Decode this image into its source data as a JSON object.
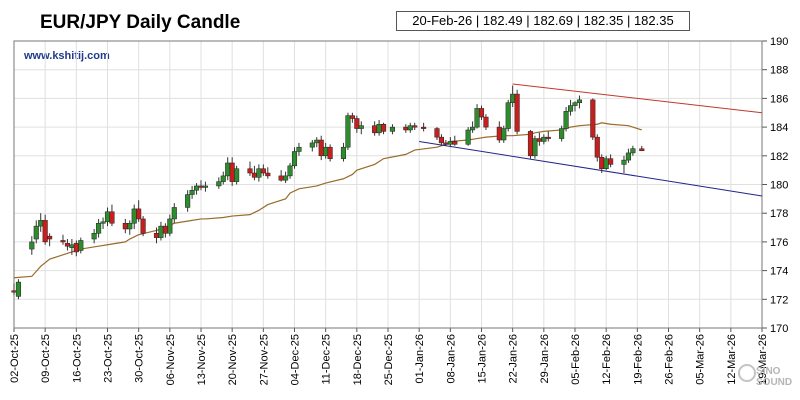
{
  "header": {
    "title": "EUR/JPY Daily Candle",
    "website": "www.kshitij.com",
    "ohlc_readout": "20-Feb-26 | 182.49 | 182.69 | 182.35 | 182.35"
  },
  "watermark": {
    "text": "SINO SOUND"
  },
  "colors": {
    "bull": "#2e8b2e",
    "bear": "#c81e1e",
    "wick": "#333333",
    "ma": "#9a6b2a",
    "upper_trendline": "#c0392b",
    "lower_trendline": "#23238c",
    "grid": "#e0e0e0"
  },
  "chart_data": {
    "type": "candlestick",
    "title": "EUR/JPY Daily Candle",
    "xlabel": "",
    "ylabel": "",
    "x_ticks": [
      "02-Oct-25",
      "09-Oct-25",
      "16-Oct-25",
      "23-Oct-25",
      "30-Oct-25",
      "06-Nov-25",
      "13-Nov-25",
      "20-Nov-25",
      "27-Nov-25",
      "04-Dec-25",
      "11-Dec-25",
      "18-Dec-25",
      "25-Dec-25",
      "01-Jan-26",
      "08-Jan-26",
      "15-Jan-26",
      "22-Jan-26",
      "29-Jan-26",
      "05-Feb-26",
      "12-Feb-26",
      "19-Feb-26",
      "26-Feb-26",
      "05-Mar-26",
      "12-Mar-26",
      "19-Mar-26"
    ],
    "y_ticks": [
      170,
      172,
      174,
      176,
      178,
      180,
      182,
      184,
      186,
      188,
      190
    ],
    "ylim": [
      170,
      190
    ],
    "y_axis_side": "right",
    "grid": true,
    "candles": [
      {
        "date": "02-Oct-25",
        "o": 172.6,
        "h": 173.1,
        "l": 172.3,
        "c": 172.5
      },
      {
        "date": "03-Oct-25",
        "o": 172.2,
        "h": 173.4,
        "l": 172.0,
        "c": 173.2
      },
      {
        "date": "06-Oct-25",
        "o": 175.5,
        "h": 176.4,
        "l": 175.1,
        "c": 176.0
      },
      {
        "date": "07-Oct-25",
        "o": 176.2,
        "h": 177.5,
        "l": 175.9,
        "c": 177.1
      },
      {
        "date": "08-Oct-25",
        "o": 177.1,
        "h": 178.0,
        "l": 176.7,
        "c": 177.5
      },
      {
        "date": "09-Oct-25",
        "o": 177.5,
        "h": 177.9,
        "l": 175.8,
        "c": 176.0
      },
      {
        "date": "10-Oct-25",
        "o": 176.4,
        "h": 176.6,
        "l": 175.7,
        "c": 176.2
      },
      {
        "date": "13-Oct-25",
        "o": 176.1,
        "h": 176.5,
        "l": 175.8,
        "c": 176.0
      },
      {
        "date": "14-Oct-25",
        "o": 175.9,
        "h": 176.2,
        "l": 175.4,
        "c": 175.7
      },
      {
        "date": "15-Oct-25",
        "o": 175.6,
        "h": 176.2,
        "l": 175.1,
        "c": 175.8
      },
      {
        "date": "16-Oct-25",
        "o": 175.9,
        "h": 176.1,
        "l": 175.0,
        "c": 175.3
      },
      {
        "date": "17-Oct-25",
        "o": 175.4,
        "h": 176.3,
        "l": 175.2,
        "c": 176.1
      },
      {
        "date": "20-Oct-25",
        "o": 176.2,
        "h": 176.9,
        "l": 175.9,
        "c": 176.6
      },
      {
        "date": "21-Oct-25",
        "o": 176.6,
        "h": 177.6,
        "l": 176.3,
        "c": 177.3
      },
      {
        "date": "22-Oct-25",
        "o": 177.3,
        "h": 177.7,
        "l": 176.9,
        "c": 177.4
      },
      {
        "date": "23-Oct-25",
        "o": 177.4,
        "h": 178.4,
        "l": 177.1,
        "c": 178.1
      },
      {
        "date": "24-Oct-25",
        "o": 178.1,
        "h": 178.6,
        "l": 177.1,
        "c": 177.3
      },
      {
        "date": "27-Oct-25",
        "o": 177.3,
        "h": 177.6,
        "l": 176.6,
        "c": 176.9
      },
      {
        "date": "28-Oct-25",
        "o": 176.9,
        "h": 177.5,
        "l": 176.5,
        "c": 177.3
      },
      {
        "date": "29-Oct-25",
        "o": 177.3,
        "h": 178.6,
        "l": 176.9,
        "c": 178.3
      },
      {
        "date": "30-Oct-25",
        "o": 178.3,
        "h": 178.9,
        "l": 177.4,
        "c": 177.6
      },
      {
        "date": "31-Oct-25",
        "o": 177.6,
        "h": 177.8,
        "l": 176.4,
        "c": 176.6
      },
      {
        "date": "03-Nov-25",
        "o": 176.6,
        "h": 177.0,
        "l": 175.9,
        "c": 176.3
      },
      {
        "date": "04-Nov-25",
        "o": 176.3,
        "h": 177.4,
        "l": 176.1,
        "c": 177.1
      },
      {
        "date": "05-Nov-25",
        "o": 177.1,
        "h": 177.3,
        "l": 176.3,
        "c": 176.6
      },
      {
        "date": "06-Nov-25",
        "o": 176.6,
        "h": 177.9,
        "l": 176.4,
        "c": 177.6
      },
      {
        "date": "07-Nov-25",
        "o": 177.6,
        "h": 178.7,
        "l": 177.3,
        "c": 178.4
      },
      {
        "date": "10-Nov-25",
        "o": 178.4,
        "h": 179.6,
        "l": 178.1,
        "c": 179.3
      },
      {
        "date": "11-Nov-25",
        "o": 179.3,
        "h": 179.9,
        "l": 179.0,
        "c": 179.6
      },
      {
        "date": "12-Nov-25",
        "o": 179.6,
        "h": 180.1,
        "l": 179.3,
        "c": 179.9
      },
      {
        "date": "13-Nov-25",
        "o": 179.9,
        "h": 180.3,
        "l": 179.6,
        "c": 179.8
      },
      {
        "date": "14-Nov-25",
        "o": 179.8,
        "h": 180.2,
        "l": 179.5,
        "c": 179.9
      },
      {
        "date": "17-Nov-25",
        "o": 179.9,
        "h": 180.5,
        "l": 179.7,
        "c": 180.2
      },
      {
        "date": "18-Nov-25",
        "o": 180.2,
        "h": 180.9,
        "l": 180.0,
        "c": 180.6
      },
      {
        "date": "19-Nov-25",
        "o": 180.6,
        "h": 181.9,
        "l": 180.3,
        "c": 181.5
      },
      {
        "date": "20-Nov-25",
        "o": 181.5,
        "h": 181.9,
        "l": 179.9,
        "c": 180.2
      },
      {
        "date": "21-Nov-25",
        "o": 180.2,
        "h": 181.3,
        "l": 180.0,
        "c": 181.1
      },
      {
        "date": "24-Nov-25",
        "o": 181.1,
        "h": 181.6,
        "l": 180.6,
        "c": 180.8
      },
      {
        "date": "25-Nov-25",
        "o": 180.8,
        "h": 181.3,
        "l": 180.3,
        "c": 180.5
      },
      {
        "date": "26-Nov-25",
        "o": 180.5,
        "h": 181.4,
        "l": 180.2,
        "c": 181.1
      },
      {
        "date": "27-Nov-25",
        "o": 181.1,
        "h": 181.4,
        "l": 180.6,
        "c": 180.8
      },
      {
        "date": "28-Nov-25",
        "o": 180.8,
        "h": 181.2,
        "l": 180.4,
        "c": 180.6
      },
      {
        "date": "01-Dec-25",
        "o": 180.6,
        "h": 181.0,
        "l": 180.2,
        "c": 180.3
      },
      {
        "date": "02-Dec-25",
        "o": 180.3,
        "h": 180.9,
        "l": 180.1,
        "c": 180.6
      },
      {
        "date": "03-Dec-25",
        "o": 180.6,
        "h": 181.5,
        "l": 180.4,
        "c": 181.3
      },
      {
        "date": "04-Dec-25",
        "o": 181.3,
        "h": 182.6,
        "l": 181.1,
        "c": 182.3
      },
      {
        "date": "05-Dec-25",
        "o": 182.3,
        "h": 182.9,
        "l": 182.0,
        "c": 182.6
      },
      {
        "date": "08-Dec-25",
        "o": 182.6,
        "h": 183.1,
        "l": 182.3,
        "c": 182.9
      },
      {
        "date": "09-Dec-25",
        "o": 182.9,
        "h": 183.3,
        "l": 182.6,
        "c": 183.1
      },
      {
        "date": "10-Dec-25",
        "o": 183.1,
        "h": 183.4,
        "l": 181.7,
        "c": 182.0
      },
      {
        "date": "11-Dec-25",
        "o": 182.0,
        "h": 182.9,
        "l": 181.8,
        "c": 182.6
      },
      {
        "date": "12-Dec-25",
        "o": 182.6,
        "h": 182.8,
        "l": 181.6,
        "c": 181.8
      },
      {
        "date": "15-Dec-25",
        "o": 181.8,
        "h": 182.9,
        "l": 181.6,
        "c": 182.6
      },
      {
        "date": "16-Dec-25",
        "o": 182.6,
        "h": 185.0,
        "l": 182.4,
        "c": 184.8
      },
      {
        "date": "17-Dec-25",
        "o": 184.8,
        "h": 185.0,
        "l": 184.3,
        "c": 184.6
      },
      {
        "date": "18-Dec-25",
        "o": 184.6,
        "h": 184.8,
        "l": 183.6,
        "c": 183.9
      },
      {
        "date": "19-Dec-25",
        "o": 183.9,
        "h": 184.4,
        "l": 183.5,
        "c": 184.1
      },
      {
        "date": "22-Dec-25",
        "o": 184.1,
        "h": 184.4,
        "l": 183.4,
        "c": 183.6
      },
      {
        "date": "23-Dec-25",
        "o": 183.6,
        "h": 184.5,
        "l": 183.4,
        "c": 184.2
      },
      {
        "date": "24-Dec-25",
        "o": 184.2,
        "h": 184.3,
        "l": 183.5,
        "c": 183.7
      },
      {
        "date": "26-Dec-25",
        "o": 183.7,
        "h": 184.2,
        "l": 183.5,
        "c": 184.0
      },
      {
        "date": "29-Dec-25",
        "o": 184.0,
        "h": 184.2,
        "l": 183.6,
        "c": 183.8
      },
      {
        "date": "30-Dec-25",
        "o": 183.8,
        "h": 184.3,
        "l": 183.6,
        "c": 184.1
      },
      {
        "date": "31-Dec-25",
        "o": 184.1,
        "h": 184.3,
        "l": 183.8,
        "c": 184.0
      },
      {
        "date": "02-Jan-26",
        "o": 184.0,
        "h": 184.3,
        "l": 183.7,
        "c": 183.9
      },
      {
        "date": "05-Jan-26",
        "o": 183.9,
        "h": 184.0,
        "l": 183.1,
        "c": 183.3
      },
      {
        "date": "06-Jan-26",
        "o": 183.3,
        "h": 183.5,
        "l": 182.7,
        "c": 182.9
      },
      {
        "date": "07-Jan-26",
        "o": 182.9,
        "h": 183.1,
        "l": 182.7,
        "c": 182.8
      },
      {
        "date": "08-Jan-26",
        "o": 182.8,
        "h": 183.3,
        "l": 182.6,
        "c": 183.0
      },
      {
        "date": "09-Jan-26",
        "o": 183.0,
        "h": 183.4,
        "l": 182.7,
        "c": 182.8
      },
      {
        "date": "12-Jan-26",
        "o": 182.8,
        "h": 184.0,
        "l": 182.7,
        "c": 183.8
      },
      {
        "date": "13-Jan-26",
        "o": 183.8,
        "h": 184.4,
        "l": 183.6,
        "c": 184.0
      },
      {
        "date": "14-Jan-26",
        "o": 184.0,
        "h": 185.6,
        "l": 183.9,
        "c": 185.3
      },
      {
        "date": "15-Jan-26",
        "o": 185.3,
        "h": 185.5,
        "l": 184.5,
        "c": 184.7
      },
      {
        "date": "16-Jan-26",
        "o": 184.7,
        "h": 184.9,
        "l": 183.8,
        "c": 184.0
      },
      {
        "date": "19-Jan-26",
        "o": 184.0,
        "h": 184.4,
        "l": 182.9,
        "c": 183.1
      },
      {
        "date": "20-Jan-26",
        "o": 183.1,
        "h": 184.1,
        "l": 182.9,
        "c": 183.9
      },
      {
        "date": "21-Jan-26",
        "o": 183.9,
        "h": 185.9,
        "l": 183.7,
        "c": 185.7
      },
      {
        "date": "22-Jan-26",
        "o": 185.7,
        "h": 186.9,
        "l": 185.4,
        "c": 186.3
      },
      {
        "date": "23-Jan-26",
        "o": 186.3,
        "h": 186.6,
        "l": 183.5,
        "c": 183.7
      },
      {
        "date": "26-Jan-26",
        "o": 183.7,
        "h": 183.8,
        "l": 181.8,
        "c": 182.0
      },
      {
        "date": "27-Jan-26",
        "o": 182.0,
        "h": 183.4,
        "l": 181.8,
        "c": 183.2
      },
      {
        "date": "28-Jan-26",
        "o": 183.2,
        "h": 183.6,
        "l": 182.7,
        "c": 183.0
      },
      {
        "date": "29-Jan-26",
        "o": 183.0,
        "h": 183.5,
        "l": 182.8,
        "c": 183.3
      },
      {
        "date": "30-Jan-26",
        "o": 183.3,
        "h": 183.7,
        "l": 183.0,
        "c": 183.2
      },
      {
        "date": "02-Feb-26",
        "o": 183.2,
        "h": 184.1,
        "l": 183.0,
        "c": 183.9
      },
      {
        "date": "03-Feb-26",
        "o": 183.9,
        "h": 185.4,
        "l": 183.7,
        "c": 185.1
      },
      {
        "date": "04-Feb-26",
        "o": 185.1,
        "h": 185.9,
        "l": 184.8,
        "c": 185.5
      },
      {
        "date": "05-Feb-26",
        "o": 185.5,
        "h": 185.8,
        "l": 185.1,
        "c": 185.7
      },
      {
        "date": "06-Feb-26",
        "o": 185.7,
        "h": 186.2,
        "l": 185.3,
        "c": 185.9
      },
      {
        "date": "09-Feb-26",
        "o": 185.9,
        "h": 186.0,
        "l": 183.1,
        "c": 183.3
      },
      {
        "date": "10-Feb-26",
        "o": 183.3,
        "h": 183.5,
        "l": 181.6,
        "c": 181.9
      },
      {
        "date": "11-Feb-26",
        "o": 181.9,
        "h": 182.1,
        "l": 180.8,
        "c": 181.1
      },
      {
        "date": "12-Feb-26",
        "o": 181.1,
        "h": 182.0,
        "l": 181.0,
        "c": 181.8
      },
      {
        "date": "13-Feb-26",
        "o": 181.8,
        "h": 182.1,
        "l": 181.2,
        "c": 181.4
      },
      {
        "date": "16-Feb-26",
        "o": 181.4,
        "h": 182.0,
        "l": 180.8,
        "c": 181.7
      },
      {
        "date": "17-Feb-26",
        "o": 181.7,
        "h": 182.5,
        "l": 181.5,
        "c": 182.2
      },
      {
        "date": "18-Feb-26",
        "o": 182.2,
        "h": 182.7,
        "l": 182.0,
        "c": 182.5
      },
      {
        "date": "20-Feb-26",
        "o": 182.49,
        "h": 182.69,
        "l": 182.35,
        "c": 182.35
      }
    ],
    "moving_average": [
      173.5,
      173.6,
      174.3,
      174.8,
      175.1,
      175.3,
      175.5,
      175.7,
      175.8,
      176.0,
      176.2,
      176.5,
      176.8,
      177.0,
      177.3,
      177.5,
      177.6,
      177.6,
      177.7,
      177.8,
      177.9,
      178.2,
      178.6,
      179.0,
      179.4,
      179.7,
      179.9,
      180.1,
      180.4,
      180.7,
      181.0,
      181.4,
      181.8,
      182.1,
      182.4,
      182.6,
      182.8,
      183.0,
      183.1,
      183.2,
      183.3,
      183.4,
      183.4,
      183.5,
      183.6,
      183.7,
      183.8,
      184.0,
      184.1,
      184.2,
      184.3,
      184.2,
      184.1,
      183.8
    ],
    "moving_average_start": "02-Oct-25",
    "trendlines": [
      {
        "from_date": "22-Jan-26",
        "from_value": 187.0,
        "to_date": "19-Mar-26",
        "to_value": 185.0
      },
      {
        "from_date": "01-Jan-26",
        "from_value": 183.0,
        "to_date": "19-Mar-26",
        "to_value": 179.2
      }
    ]
  }
}
